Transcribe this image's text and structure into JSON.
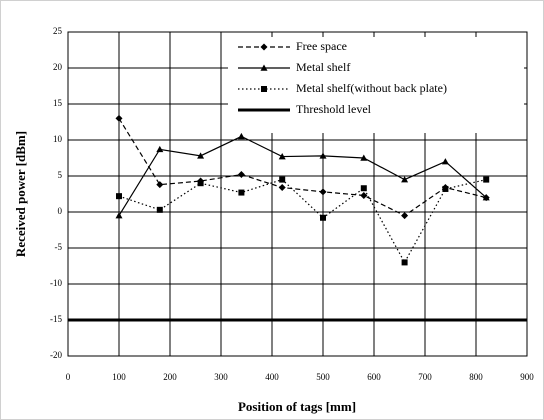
{
  "chart_data": {
    "type": "line",
    "x_label": "Position of tags [mm]",
    "y_label": "Received power [dBm]",
    "x": [
      100,
      180,
      260,
      340,
      420,
      500,
      580,
      660,
      740,
      820
    ],
    "series": [
      {
        "name": "Free space",
        "color": "#000000",
        "dash": "dashed",
        "marker": "diamond",
        "values": [
          13,
          3.8,
          4.3,
          5.2,
          3.4,
          2.8,
          2.3,
          -0.5,
          3.4,
          2.0
        ]
      },
      {
        "name": "Metal shelf",
        "color": "#000000",
        "dash": "solid",
        "marker": "triangle",
        "values": [
          -0.5,
          8.7,
          7.8,
          10.5,
          7.7,
          7.8,
          7.5,
          4.5,
          7.0,
          2.0
        ]
      },
      {
        "name": "Metal shelf(without back plate)",
        "color": "#000000",
        "dash": "dotted",
        "marker": "square",
        "values": [
          2.2,
          0.3,
          4.0,
          2.7,
          4.5,
          -0.8,
          3.3,
          -7.0,
          3.2,
          4.5
        ]
      }
    ],
    "threshold": {
      "name": "Threshold level",
      "value": -15,
      "color": "#000000"
    },
    "xlim": [
      0,
      900
    ],
    "xticks": [
      0,
      100,
      200,
      300,
      400,
      500,
      600,
      700,
      800,
      900
    ],
    "ylim": [
      -20,
      25
    ],
    "yticks": [
      -20,
      -15,
      -10,
      -5,
      0,
      5,
      10,
      15,
      20,
      25
    ],
    "grid": true
  }
}
